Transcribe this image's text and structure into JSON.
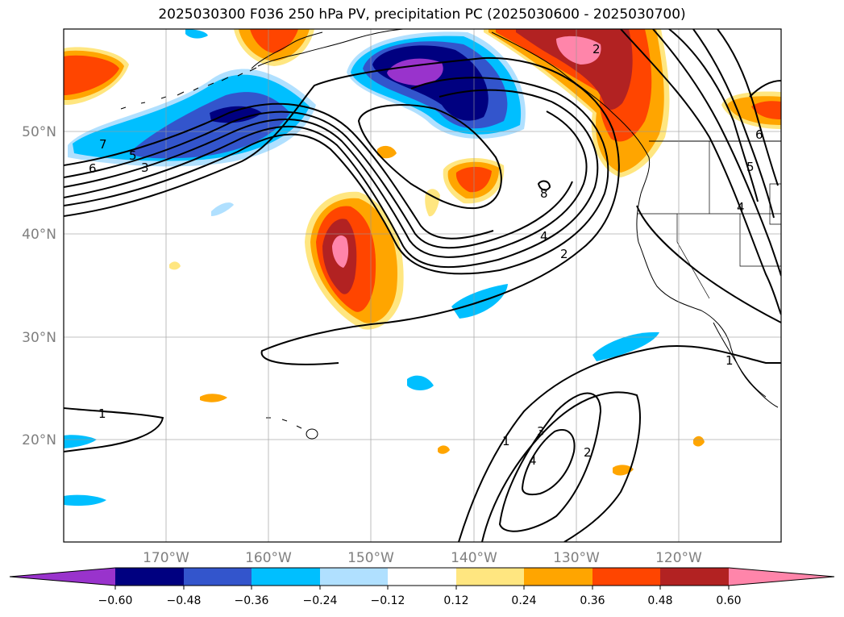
{
  "title": "2025030300 F036 250 hPa PV, precipitation PC (2025030600 - 2025030700)",
  "map": {
    "lon_labels": [
      "170°W",
      "160°W",
      "150°W",
      "140°W",
      "130°W",
      "120°W"
    ],
    "lat_labels": [
      "50°N",
      "40°N",
      "30°N",
      "20°N"
    ],
    "grid_lons": [
      -170,
      -160,
      -150,
      -140,
      -130,
      -120
    ],
    "grid_lats": [
      50,
      40,
      30,
      20
    ],
    "lon_range": [
      -180,
      -110
    ],
    "lat_range": [
      10,
      60
    ],
    "gridlines": true
  },
  "pv_contour_labels": [
    "7",
    "6",
    "5",
    "3",
    "8",
    "4",
    "2",
    "6",
    "5",
    "4",
    "1",
    "1",
    "1",
    "3",
    "4",
    "2",
    "2"
  ],
  "colorbar": {
    "ticks": [
      "−0.60",
      "−0.48",
      "−0.36",
      "−0.24",
      "−0.12",
      "0.12",
      "0.24",
      "0.36",
      "0.48",
      "0.60"
    ],
    "levels": [
      -0.6,
      -0.48,
      -0.36,
      -0.24,
      -0.12,
      0.12,
      0.24,
      0.36,
      0.48,
      0.6
    ],
    "colors": [
      "#9933cc",
      "#000080",
      "#3355cc",
      "#00bfff",
      "#b0e0ff",
      "#ffffff",
      "#ffe680",
      "#ffa500",
      "#ff4500",
      "#b22222",
      "#ff85aa"
    ],
    "extend": "both"
  }
}
